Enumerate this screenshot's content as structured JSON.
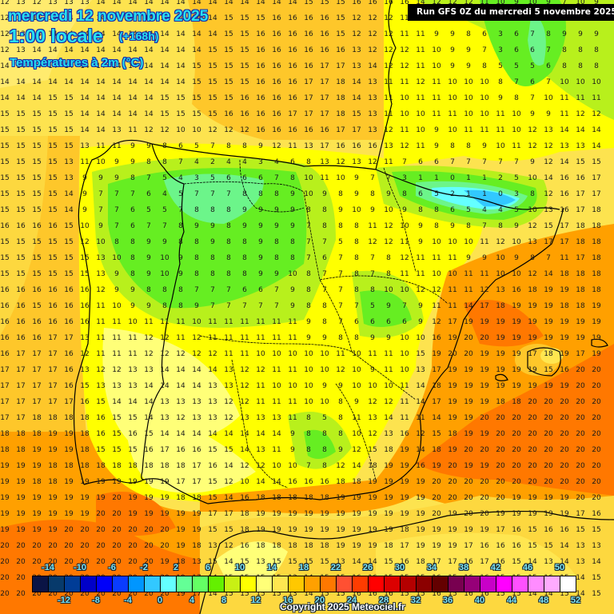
{
  "header": {
    "date": "mercredi 12 novembre 2025",
    "time": "1:00 locale",
    "lead": "(+168h)",
    "variable": "Températures à 2m (°C)",
    "run": "Run GFS 0Z du mercredi 5 novembre 2025"
  },
  "footer": {
    "copyright": "Copyright 2025 Meteociel.fr"
  },
  "colorbar": {
    "colors": [
      "#0a1445",
      "#073a6b",
      "#003c96",
      "#0000c8",
      "#0000fa",
      "#0a3cff",
      "#0096ff",
      "#32c8ff",
      "#64ffff",
      "#64ff96",
      "#64ff64",
      "#64f000",
      "#c8f014",
      "#ffff00",
      "#ffff78",
      "#ffe650",
      "#ffc800",
      "#ffa000",
      "#ff7800",
      "#ff5032",
      "#ff3c00",
      "#ff0000",
      "#dc0000",
      "#b40000",
      "#8c0000",
      "#640000",
      "#780050",
      "#960078",
      "#c800c8",
      "#ff00ff",
      "#ff50ff",
      "#ff8cff",
      "#ffaaff",
      "#ffffff"
    ],
    "top_labels": [
      "-14",
      "-10",
      "-6",
      "-2",
      "2",
      "6",
      "10",
      "14",
      "18",
      "22",
      "26",
      "30",
      "34",
      "38",
      "42",
      "46",
      "50"
    ],
    "bottom_labels": [
      "-12",
      "-8",
      "-4",
      "0",
      "4",
      "8",
      "12",
      "16",
      "20",
      "24",
      "28",
      "32",
      "36",
      "40",
      "44",
      "48",
      "52"
    ]
  },
  "chart_data": {
    "type": "heatmap",
    "title": "Températures à 2m (°C) — mercredi 12 novembre 2025 1:00 locale (+168h)",
    "subtitle": "Run GFS 0Z du mercredi 5 novembre 2025",
    "units": "°C",
    "region": "Iberian Peninsula",
    "grid_spacing_px": 20,
    "scale_min": -15,
    "scale_max": 53,
    "scale_step": 2,
    "values": [
      [
        12,
        13,
        12,
        13,
        13,
        13,
        14,
        14,
        14,
        14,
        14,
        14,
        14,
        14,
        14,
        14,
        14,
        14,
        14,
        15,
        15,
        15,
        16,
        16,
        16,
        16,
        14,
        12,
        12,
        12,
        11,
        10,
        9,
        10,
        9,
        7,
        10,
        9
      ],
      [
        12,
        13,
        14,
        14,
        14,
        14,
        14,
        14,
        14,
        14,
        14,
        14,
        14,
        14,
        15,
        15,
        15,
        16,
        16,
        16,
        16,
        15,
        12,
        12,
        12,
        11,
        11,
        10,
        9,
        8,
        7,
        5,
        4,
        7,
        8,
        8,
        9,
        9
      ],
      [
        12,
        13,
        14,
        14,
        14,
        14,
        14,
        14,
        14,
        14,
        14,
        14,
        14,
        14,
        15,
        15,
        16,
        16,
        16,
        16,
        16,
        15,
        12,
        12,
        12,
        11,
        11,
        9,
        9,
        8,
        6,
        3,
        6,
        7,
        8,
        9,
        9,
        9
      ],
      [
        12,
        13,
        14,
        14,
        14,
        14,
        14,
        14,
        14,
        14,
        14,
        14,
        14,
        15,
        15,
        15,
        16,
        16,
        16,
        16,
        16,
        16,
        13,
        12,
        12,
        12,
        11,
        10,
        9,
        9,
        7,
        3,
        6,
        6,
        7,
        8,
        8,
        8
      ],
      [
        14,
        14,
        14,
        14,
        14,
        14,
        14,
        14,
        14,
        14,
        14,
        14,
        15,
        15,
        15,
        15,
        16,
        16,
        16,
        16,
        17,
        17,
        13,
        14,
        12,
        12,
        11,
        10,
        9,
        9,
        8,
        5,
        5,
        5,
        6,
        8,
        8,
        8
      ],
      [
        14,
        14,
        14,
        14,
        14,
        14,
        14,
        14,
        14,
        14,
        14,
        14,
        15,
        15,
        15,
        15,
        16,
        16,
        16,
        17,
        17,
        18,
        14,
        13,
        11,
        11,
        12,
        11,
        10,
        10,
        10,
        8,
        7,
        6,
        7,
        10,
        10,
        10
      ],
      [
        14,
        14,
        14,
        15,
        15,
        14,
        14,
        14,
        14,
        14,
        15,
        15,
        15,
        15,
        15,
        16,
        16,
        16,
        16,
        17,
        17,
        18,
        14,
        13,
        11,
        10,
        11,
        11,
        10,
        10,
        10,
        9,
        8,
        7,
        10,
        11,
        11,
        11
      ],
      [
        15,
        15,
        15,
        15,
        15,
        14,
        14,
        14,
        14,
        14,
        15,
        15,
        15,
        15,
        16,
        16,
        16,
        16,
        17,
        17,
        17,
        18,
        15,
        13,
        11,
        10,
        10,
        11,
        11,
        10,
        10,
        11,
        10,
        9,
        9,
        11,
        12,
        12
      ],
      [
        15,
        15,
        15,
        15,
        15,
        14,
        14,
        13,
        11,
        12,
        12,
        10,
        10,
        12,
        12,
        12,
        16,
        16,
        16,
        16,
        16,
        17,
        17,
        13,
        12,
        11,
        10,
        9,
        10,
        11,
        11,
        11,
        10,
        12,
        13,
        14,
        14,
        14
      ],
      [
        15,
        15,
        15,
        15,
        15,
        13,
        11,
        11,
        9,
        9,
        8,
        6,
        5,
        7,
        8,
        8,
        9,
        12,
        11,
        13,
        17,
        16,
        16,
        16,
        13,
        12,
        11,
        9,
        8,
        8,
        9,
        10,
        11,
        12,
        12,
        13,
        13,
        14
      ],
      [
        15,
        15,
        15,
        15,
        13,
        11,
        10,
        9,
        9,
        8,
        8,
        7,
        4,
        2,
        4,
        4,
        3,
        4,
        6,
        8,
        13,
        12,
        13,
        12,
        11,
        7,
        6,
        6,
        7,
        7,
        7,
        7,
        7,
        9,
        12,
        14,
        15,
        15
      ],
      [
        15,
        15,
        15,
        15,
        13,
        9,
        9,
        9,
        8,
        7,
        5,
        4,
        3,
        5,
        6,
        6,
        6,
        7,
        8,
        10,
        11,
        10,
        9,
        7,
        7,
        3,
        1,
        1,
        0,
        1,
        1,
        2,
        5,
        10,
        14,
        16,
        16,
        17
      ],
      [
        15,
        15,
        15,
        15,
        14,
        9,
        7,
        7,
        7,
        6,
        4,
        5,
        7,
        7,
        7,
        8,
        8,
        8,
        9,
        10,
        9,
        8,
        9,
        8,
        9,
        8,
        6,
        5,
        2,
        1,
        1,
        0,
        3,
        8,
        12,
        16,
        17,
        17
      ],
      [
        15,
        15,
        15,
        15,
        14,
        9,
        7,
        7,
        6,
        5,
        5,
        7,
        8,
        8,
        8,
        9,
        9,
        9,
        9,
        8,
        8,
        9,
        10,
        9,
        10,
        9,
        8,
        8,
        6,
        5,
        4,
        4,
        5,
        10,
        13,
        16,
        17,
        18
      ],
      [
        16,
        16,
        16,
        16,
        15,
        10,
        9,
        7,
        6,
        7,
        7,
        8,
        9,
        9,
        8,
        9,
        9,
        9,
        9,
        7,
        8,
        8,
        8,
        11,
        12,
        10,
        9,
        8,
        9,
        8,
        7,
        8,
        9,
        12,
        15,
        17,
        18,
        18
      ],
      [
        15,
        15,
        15,
        15,
        15,
        12,
        10,
        8,
        8,
        9,
        9,
        8,
        8,
        9,
        8,
        8,
        9,
        8,
        8,
        7,
        7,
        5,
        8,
        12,
        12,
        11,
        9,
        10,
        10,
        10,
        11,
        12,
        10,
        13,
        17,
        17,
        18,
        18
      ],
      [
        15,
        15,
        15,
        15,
        15,
        15,
        13,
        10,
        8,
        9,
        10,
        9,
        8,
        8,
        8,
        8,
        9,
        8,
        8,
        7,
        6,
        7,
        8,
        7,
        8,
        12,
        11,
        11,
        11,
        9,
        9,
        10,
        9,
        8,
        7,
        11,
        17,
        18
      ],
      [
        15,
        15,
        15,
        15,
        15,
        15,
        13,
        9,
        8,
        9,
        10,
        9,
        8,
        8,
        8,
        8,
        9,
        9,
        10,
        8,
        7,
        7,
        8,
        7,
        8,
        11,
        11,
        10,
        10,
        11,
        11,
        10,
        10,
        12,
        14,
        18,
        18,
        18
      ],
      [
        16,
        16,
        16,
        16,
        16,
        16,
        12,
        9,
        9,
        8,
        8,
        8,
        7,
        7,
        7,
        6,
        6,
        7,
        9,
        8,
        7,
        7,
        8,
        8,
        10,
        10,
        12,
        12,
        11,
        11,
        12,
        13,
        16,
        18,
        19,
        19,
        18,
        18
      ],
      [
        16,
        16,
        15,
        16,
        16,
        16,
        11,
        10,
        9,
        9,
        8,
        8,
        9,
        7,
        7,
        7,
        7,
        7,
        9,
        8,
        8,
        7,
        7,
        5,
        9,
        7,
        9,
        11,
        11,
        14,
        17,
        18,
        19,
        19,
        19,
        18,
        18,
        19
      ],
      [
        16,
        16,
        16,
        16,
        16,
        16,
        11,
        11,
        10,
        11,
        11,
        11,
        10,
        11,
        11,
        11,
        11,
        11,
        11,
        9,
        8,
        7,
        6,
        6,
        6,
        6,
        9,
        12,
        17,
        19,
        19,
        19,
        19,
        19,
        19,
        19,
        19,
        19
      ],
      [
        16,
        16,
        16,
        17,
        17,
        13,
        11,
        11,
        11,
        12,
        12,
        11,
        12,
        11,
        11,
        11,
        11,
        11,
        11,
        9,
        9,
        8,
        8,
        9,
        9,
        10,
        10,
        16,
        19,
        20,
        20,
        19,
        19,
        19,
        19,
        19,
        19,
        19
      ],
      [
        16,
        17,
        17,
        17,
        16,
        12,
        11,
        11,
        11,
        12,
        12,
        12,
        12,
        12,
        11,
        11,
        10,
        10,
        10,
        10,
        10,
        11,
        10,
        11,
        11,
        10,
        15,
        19,
        20,
        20,
        19,
        19,
        19,
        17,
        18,
        19,
        17,
        19
      ],
      [
        17,
        17,
        17,
        17,
        16,
        13,
        12,
        12,
        13,
        13,
        14,
        14,
        14,
        14,
        13,
        12,
        12,
        11,
        11,
        10,
        10,
        12,
        10,
        9,
        11,
        10,
        13,
        17,
        19,
        19,
        19,
        19,
        19,
        19,
        15,
        16,
        20,
        20
      ],
      [
        17,
        17,
        17,
        17,
        16,
        15,
        13,
        13,
        13,
        14,
        14,
        14,
        14,
        13,
        13,
        12,
        11,
        10,
        10,
        10,
        9,
        9,
        10,
        10,
        10,
        11,
        14,
        18,
        19,
        19,
        19,
        19,
        19,
        19,
        19,
        19,
        20,
        20
      ],
      [
        17,
        17,
        17,
        17,
        17,
        16,
        15,
        14,
        14,
        14,
        13,
        13,
        13,
        13,
        12,
        12,
        11,
        11,
        11,
        10,
        10,
        8,
        9,
        12,
        12,
        11,
        14,
        17,
        19,
        19,
        19,
        18,
        18,
        20,
        20,
        20,
        20,
        20
      ],
      [
        17,
        17,
        18,
        18,
        18,
        18,
        16,
        15,
        15,
        14,
        13,
        12,
        13,
        13,
        12,
        13,
        13,
        13,
        11,
        8,
        5,
        8,
        11,
        13,
        14,
        11,
        11,
        14,
        19,
        19,
        20,
        20,
        20,
        20,
        20,
        20,
        20,
        20
      ],
      [
        18,
        18,
        18,
        19,
        19,
        18,
        16,
        15,
        16,
        15,
        14,
        14,
        14,
        14,
        14,
        14,
        14,
        14,
        9,
        8,
        8,
        8,
        10,
        12,
        13,
        16,
        12,
        15,
        18,
        19,
        19,
        20,
        20,
        20,
        20,
        20,
        20,
        20
      ],
      [
        18,
        18,
        19,
        19,
        19,
        18,
        15,
        15,
        15,
        16,
        17,
        16,
        16,
        15,
        15,
        14,
        13,
        11,
        9,
        8,
        8,
        9,
        12,
        15,
        18,
        19,
        14,
        18,
        19,
        20,
        20,
        20,
        20,
        20,
        20,
        20,
        20,
        20
      ],
      [
        19,
        19,
        19,
        18,
        18,
        18,
        18,
        18,
        18,
        18,
        18,
        18,
        17,
        16,
        14,
        12,
        12,
        10,
        10,
        7,
        8,
        12,
        14,
        18,
        19,
        19,
        16,
        19,
        20,
        19,
        19,
        20,
        20,
        20,
        20,
        20,
        20,
        20
      ],
      [
        19,
        19,
        18,
        18,
        19,
        19,
        19,
        19,
        19,
        19,
        19,
        17,
        17,
        15,
        12,
        10,
        14,
        14,
        16,
        16,
        16,
        18,
        18,
        19,
        19,
        19,
        19,
        20,
        20,
        20,
        20,
        20,
        20,
        20,
        20,
        20,
        20,
        20
      ],
      [
        19,
        19,
        19,
        19,
        19,
        19,
        19,
        20,
        19,
        19,
        19,
        18,
        18,
        15,
        14,
        16,
        18,
        18,
        18,
        18,
        18,
        19,
        19,
        19,
        19,
        19,
        19,
        20,
        20,
        20,
        20,
        20,
        19,
        19,
        19,
        19,
        20,
        20
      ],
      [
        19,
        19,
        19,
        19,
        19,
        19,
        20,
        20,
        19,
        19,
        19,
        19,
        19,
        17,
        17,
        18,
        19,
        19,
        19,
        19,
        19,
        19,
        19,
        19,
        19,
        19,
        19,
        20,
        19,
        20,
        20,
        19,
        19,
        19,
        19,
        19,
        17,
        16
      ],
      [
        19,
        19,
        19,
        19,
        20,
        20,
        20,
        20,
        20,
        20,
        20,
        19,
        19,
        15,
        15,
        18,
        19,
        19,
        19,
        19,
        19,
        19,
        19,
        19,
        19,
        18,
        19,
        19,
        19,
        19,
        19,
        17,
        16,
        15,
        16,
        16,
        15,
        15
      ],
      [
        20,
        20,
        20,
        20,
        20,
        20,
        20,
        20,
        20,
        20,
        20,
        19,
        18,
        13,
        12,
        16,
        18,
        18,
        18,
        18,
        18,
        19,
        19,
        19,
        18,
        17,
        19,
        19,
        19,
        17,
        16,
        16,
        16,
        15,
        15,
        14,
        13,
        13
      ],
      [
        20,
        20,
        20,
        20,
        20,
        20,
        20,
        20,
        20,
        20,
        19,
        18,
        13,
        15,
        14,
        15,
        13,
        15,
        15,
        15,
        15,
        13,
        14,
        14,
        15,
        16,
        18,
        17,
        17,
        16,
        17,
        16,
        15,
        14,
        13,
        14,
        13,
        14
      ],
      [
        20,
        20,
        20,
        20,
        20,
        20,
        20,
        20,
        20,
        20,
        20,
        19,
        17,
        14,
        15,
        15,
        15,
        15,
        13,
        14,
        15,
        15,
        16,
        16,
        15,
        15,
        15,
        16,
        15,
        16,
        16,
        15,
        15,
        15,
        16,
        15,
        14,
        15
      ],
      [
        20,
        20,
        20,
        20,
        20,
        20,
        20,
        20,
        20,
        20,
        20,
        19,
        17,
        14,
        15,
        15,
        15,
        15,
        13,
        14,
        15,
        15,
        16,
        16,
        16,
        15,
        15,
        16,
        15,
        16,
        16,
        15,
        15,
        14,
        14,
        15,
        14,
        15
      ]
    ]
  }
}
